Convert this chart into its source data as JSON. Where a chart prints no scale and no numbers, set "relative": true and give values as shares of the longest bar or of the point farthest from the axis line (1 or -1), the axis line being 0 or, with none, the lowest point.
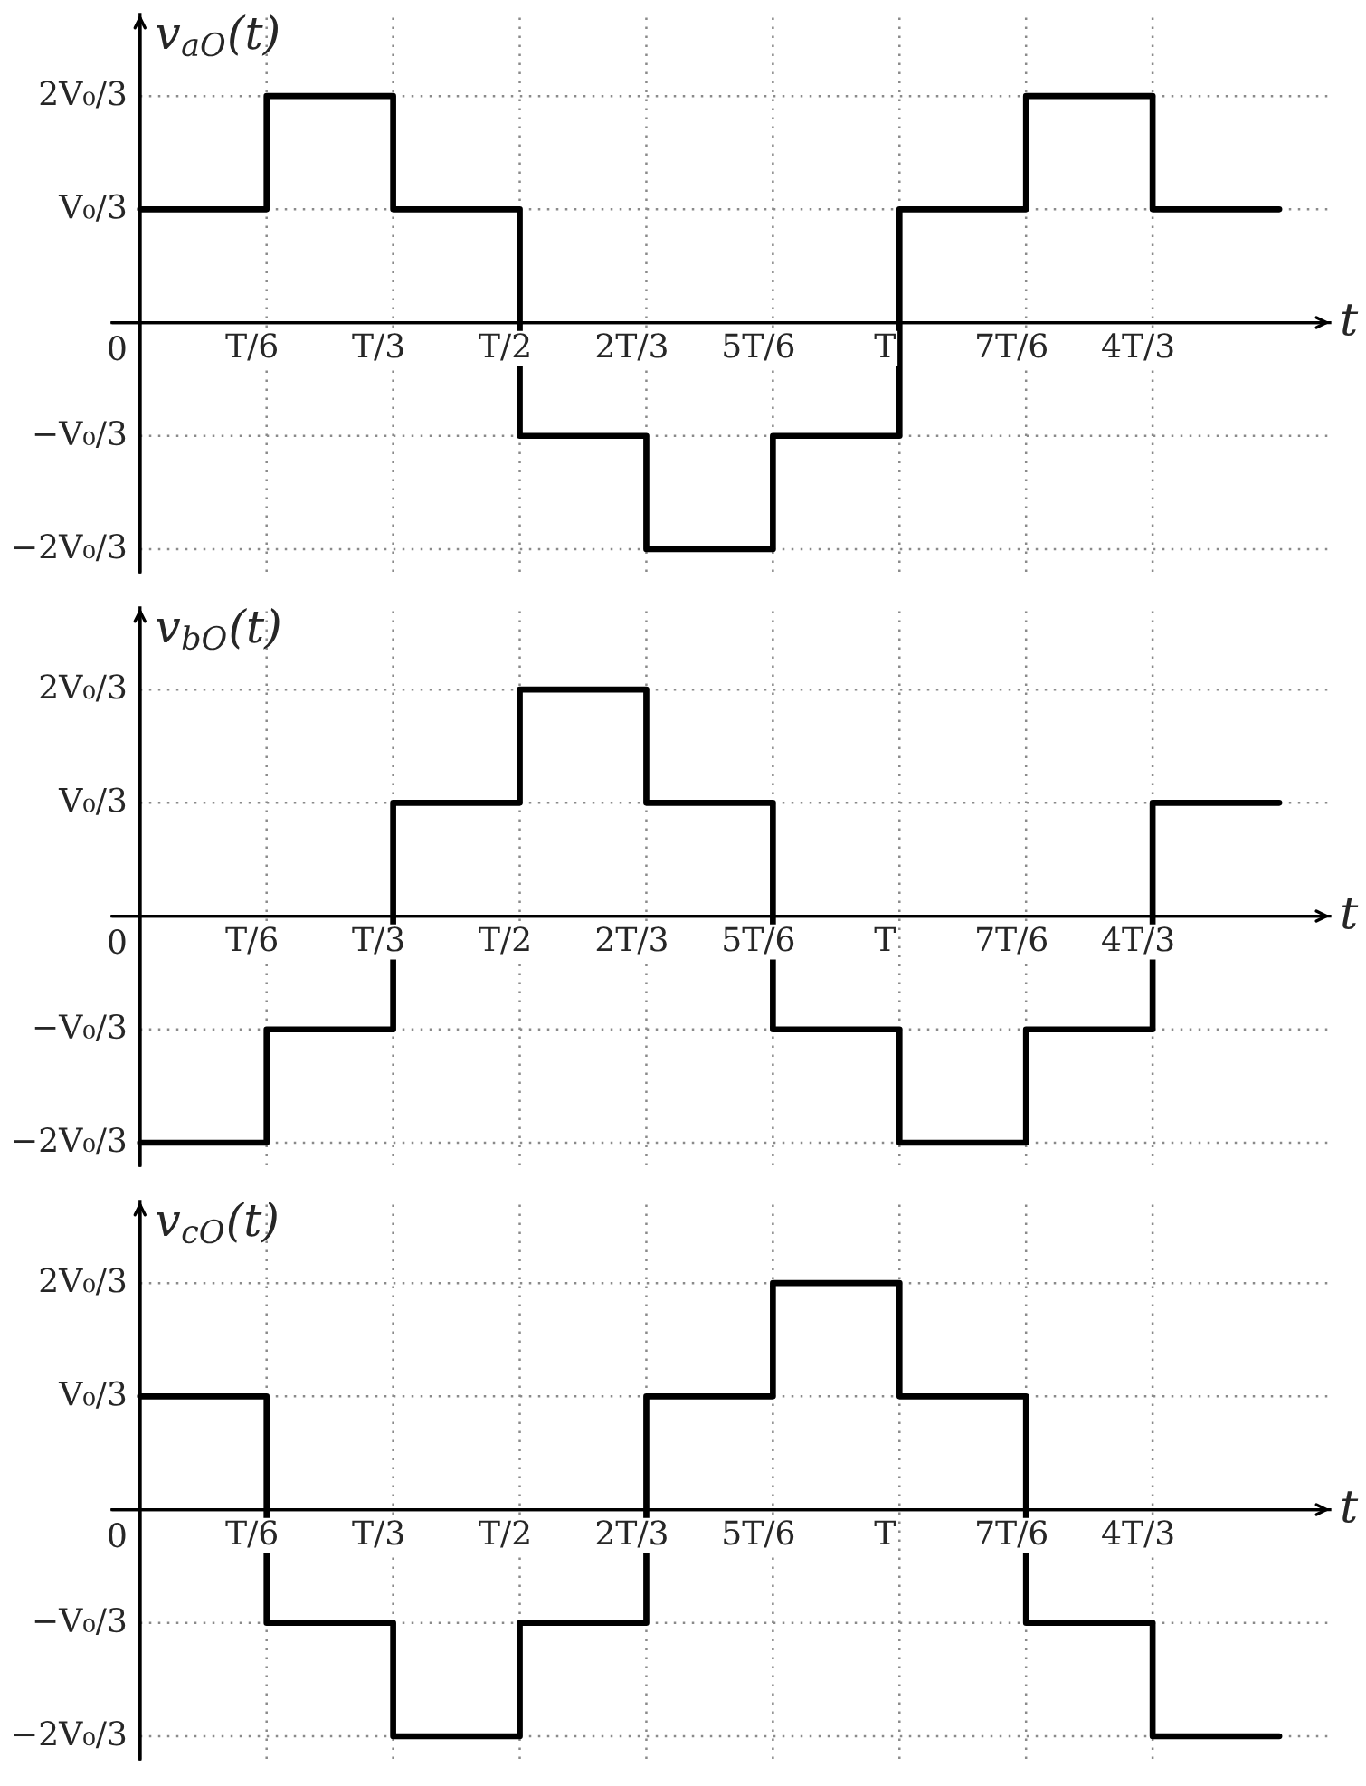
{
  "chart_data": [
    {
      "type": "step",
      "relative": true,
      "ylabel": "v$_{aO}$(t)",
      "xlabel": "t",
      "categories": [
        null,
        "T/6",
        "T/3",
        "T/2",
        "2T/3",
        "5T/6",
        "T",
        "7T/6",
        "4T/3",
        null
      ],
      "series": [
        {
          "color": "#000000",
          "values": [
            0.5,
            1,
            0.5,
            -0.5,
            -1,
            -0.5,
            0.5,
            1,
            0.5,
            0.5
          ]
        }
      ],
      "ref_lines": [
        {
          "axis": "y",
          "value": 1,
          "label": "2V₀/3",
          "color": "#8a8a8a",
          "line_style": "dotted"
        },
        {
          "axis": "y",
          "value": 0.5,
          "label": "V₀/3",
          "color": "#8a8a8a",
          "line_style": "dotted"
        },
        {
          "axis": "y",
          "value": -0.5,
          "label": "−V₀/3",
          "color": "#8a8a8a",
          "line_style": "dotted"
        },
        {
          "axis": "y",
          "value": -1,
          "label": "−2V₀/3",
          "color": "#8a8a8a",
          "line_style": "dotted"
        }
      ],
      "annotations": [
        "0"
      ],
      "grid": "x",
      "tick_labels": "x",
      "marker": "none",
      "line_style": "solid"
    },
    {
      "type": "step",
      "relative": true,
      "ylabel": "v$_{bO}$(t)",
      "xlabel": "t",
      "categories": [
        null,
        "T/6",
        "T/3",
        "T/2",
        "2T/3",
        "5T/6",
        "T",
        "7T/6",
        "4T/3",
        null
      ],
      "series": [
        {
          "color": "#000000",
          "values": [
            -1,
            -0.5,
            0.5,
            1,
            0.5,
            -0.5,
            -1,
            -0.5,
            0.5,
            0.5
          ]
        }
      ],
      "ref_lines": [
        {
          "axis": "y",
          "value": 1,
          "label": "2V₀/3",
          "color": "#8a8a8a",
          "line_style": "dotted"
        },
        {
          "axis": "y",
          "value": 0.5,
          "label": "V₀/3",
          "color": "#8a8a8a",
          "line_style": "dotted"
        },
        {
          "axis": "y",
          "value": -0.5,
          "label": "−V₀/3",
          "color": "#8a8a8a",
          "line_style": "dotted"
        },
        {
          "axis": "y",
          "value": -1,
          "label": "−2V₀/3",
          "color": "#8a8a8a",
          "line_style": "dotted"
        }
      ],
      "annotations": [
        "0"
      ],
      "grid": "x",
      "tick_labels": "x",
      "marker": "none",
      "line_style": "solid"
    },
    {
      "type": "step",
      "relative": true,
      "ylabel": "v$_{cO}$(t)",
      "xlabel": "t",
      "categories": [
        null,
        "T/6",
        "T/3",
        "T/2",
        "2T/3",
        "5T/6",
        "T",
        "7T/6",
        "4T/3",
        null
      ],
      "series": [
        {
          "color": "#000000",
          "values": [
            0.5,
            -0.5,
            -1,
            -0.5,
            0.5,
            1,
            0.5,
            -0.5,
            -1,
            -1
          ]
        }
      ],
      "ref_lines": [
        {
          "axis": "y",
          "value": 1,
          "label": "2V₀/3",
          "color": "#8a8a8a",
          "line_style": "dotted"
        },
        {
          "axis": "y",
          "value": 0.5,
          "label": "V₀/3",
          "color": "#8a8a8a",
          "line_style": "dotted"
        },
        {
          "axis": "y",
          "value": -0.5,
          "label": "−V₀/3",
          "color": "#8a8a8a",
          "line_style": "dotted"
        },
        {
          "axis": "y",
          "value": -1,
          "label": "−2V₀/3",
          "color": "#8a8a8a",
          "line_style": "dotted"
        }
      ],
      "annotations": [
        "0"
      ],
      "grid": "x",
      "tick_labels": "x",
      "marker": "none",
      "line_style": "solid"
    }
  ]
}
